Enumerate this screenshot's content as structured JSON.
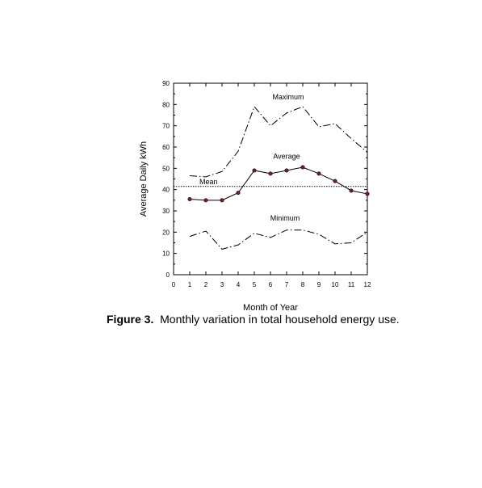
{
  "caption": {
    "label": "Figure 3.",
    "text": "Monthly variation in total household energy use."
  },
  "chart_data": {
    "type": "line",
    "title": "",
    "xlabel": "Month of Year",
    "ylabel": "Average Daily kWh",
    "xlim": [
      0,
      12
    ],
    "ylim": [
      0,
      90
    ],
    "x_ticks": [
      0,
      1,
      2,
      3,
      4,
      5,
      6,
      7,
      8,
      9,
      10,
      11,
      12
    ],
    "y_ticks": [
      0,
      10,
      20,
      30,
      40,
      50,
      60,
      70,
      80,
      90
    ],
    "grid": false,
    "x": [
      1,
      2,
      3,
      4,
      5,
      6,
      7,
      8,
      9,
      10,
      11,
      12
    ],
    "series": [
      {
        "name": "Maximum",
        "style": "dash-dot",
        "markers": false,
        "values": [
          46.5,
          46,
          48.5,
          58,
          79,
          70,
          76,
          79,
          69.5,
          71,
          64,
          57.5
        ]
      },
      {
        "name": "Average",
        "style": "solid",
        "markers": true,
        "values": [
          35.5,
          35,
          35,
          38.5,
          49,
          47.5,
          49,
          50.5,
          47.5,
          44,
          39.5,
          38
        ]
      },
      {
        "name": "Minimum",
        "style": "dash-dot",
        "markers": false,
        "values": [
          18,
          20.5,
          12,
          14,
          19.5,
          17.5,
          21,
          21,
          19,
          14.5,
          15,
          20
        ]
      }
    ],
    "mean": {
      "name": "Mean",
      "value": 41.5,
      "style": "dotted"
    },
    "colors": {
      "marker": "#8b1a1a",
      "line": "#000000"
    }
  }
}
